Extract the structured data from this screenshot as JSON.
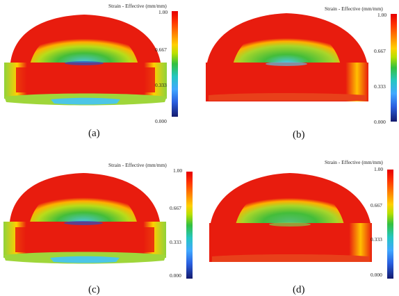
{
  "colorbar": {
    "title": "Strain - Effective (mm/mm)",
    "ticks": [
      "1.00",
      "0.667",
      "0.333",
      "0.000"
    ],
    "range": [
      0,
      1
    ]
  },
  "panels": [
    {
      "caption": "(a)"
    },
    {
      "caption": "(b)"
    },
    {
      "caption": "(c)"
    },
    {
      "caption": "(d)"
    }
  ],
  "colors": {
    "high": "#e81c0e",
    "mid_high": "#ffd000",
    "mid": "#43bd3a",
    "low": "#4fc4e3",
    "min": "#2a4ec0"
  }
}
